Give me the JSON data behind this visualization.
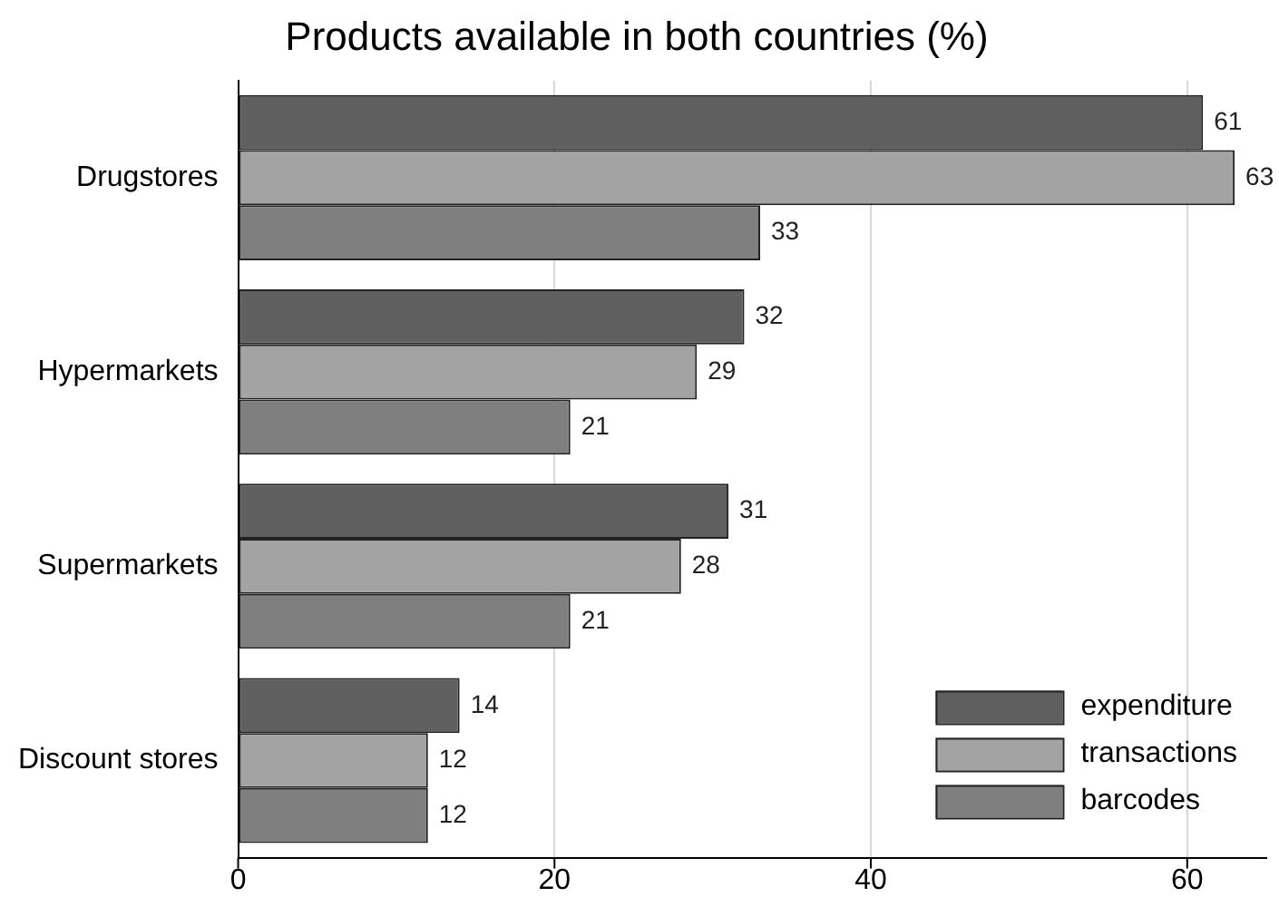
{
  "chart_data": {
    "type": "bar",
    "orientation": "horizontal",
    "title": "Products available in both countries (%)",
    "categories": [
      "Drugstores",
      "Hypermarkets",
      "Supermarkets",
      "Discount stores"
    ],
    "series": [
      {
        "name": "expenditure",
        "color": "#5f5f5f",
        "values": [
          61,
          32,
          31,
          14
        ]
      },
      {
        "name": "transactions",
        "color": "#a3a3a3",
        "values": [
          63,
          29,
          28,
          12
        ]
      },
      {
        "name": "barcodes",
        "color": "#7f7f7f",
        "values": [
          33,
          21,
          21,
          12
        ]
      }
    ],
    "xlim": [
      0,
      65
    ],
    "xticks": [
      0,
      20,
      40,
      60
    ],
    "grid": "x",
    "legend": "bottom right",
    "data_labels": true
  }
}
